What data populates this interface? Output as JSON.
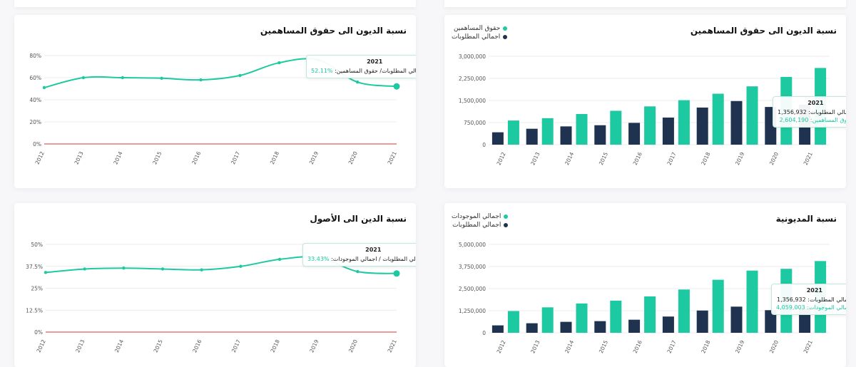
{
  "colors": {
    "teal": "#1dc9a0",
    "navy": "#1f3350",
    "red": "#e45b5b",
    "grid": "#ececec"
  },
  "debt_equity_line": {
    "title": "نسبة الديون الى حقوق المساهمين",
    "tooltip": {
      "year": "2021",
      "label": "نسبة اجمالي المطلوبات/ حقوق المساهمين:",
      "value": "%52.11"
    }
  },
  "debt_equity_bars": {
    "title": "نسبة الديون الى حقوق المساهمين",
    "legend": [
      "حقوق المساهمين",
      "اجمالي المطلوبات"
    ],
    "tooltip": {
      "year": "2021",
      "row1_label": "اجمالي المطلوبات:",
      "row1_value": "1,356,932",
      "row2_label": "حقوق المساهمين:",
      "row2_value": "2,604,190"
    }
  },
  "debt_assets_line": {
    "title": "نسبة الدين الى الأصول",
    "tooltip": {
      "year": "2021",
      "label": "نسبة اجمالي المطلوبات / اجمالي الموجودات:",
      "value": "%33.43"
    }
  },
  "indebtedness_bars": {
    "title": "نسبة المديونية",
    "legend": [
      "اجمالي الموجودات",
      "اجمالي المطلوبات"
    ],
    "tooltip": {
      "year": "2021",
      "row1_label": "اجمالي المطلوبات:",
      "row1_value": "1,356,932",
      "row2_label": "اجمالي الموجودات:",
      "row2_value": "4,059,003"
    }
  },
  "chart_data": [
    {
      "type": "line",
      "title": "نسبة الديون الى حقوق المساهمين",
      "categories": [
        "2012",
        "2013",
        "2014",
        "2015",
        "2016",
        "2017",
        "2018",
        "2019",
        "2020",
        "2021"
      ],
      "series": [
        {
          "values": [
            51,
            60,
            60,
            59.5,
            58,
            62,
            73.5,
            76,
            56,
            52.11
          ]
        }
      ],
      "baseline": 0,
      "yticks": [
        "0%",
        "20%",
        "40%",
        "60%",
        "80%"
      ],
      "ylim": [
        0,
        80
      ]
    },
    {
      "type": "bar",
      "title": "نسبة الديون الى حقوق المساهمين",
      "categories": [
        "2012",
        "2013",
        "2014",
        "2015",
        "2016",
        "2017",
        "2018",
        "2019",
        "2020",
        "2021"
      ],
      "series": [
        {
          "name": "اجمالي المطلوبات",
          "values": [
            420000,
            540000,
            620000,
            660000,
            740000,
            920000,
            1260000,
            1480000,
            1280000,
            1356932
          ]
        },
        {
          "name": "حقوق المساهمين",
          "values": [
            820000,
            900000,
            1040000,
            1150000,
            1300000,
            1510000,
            1730000,
            1980000,
            2300000,
            2604190
          ]
        }
      ],
      "yticks": [
        "0",
        "750,000",
        "1,500,000",
        "2,250,000",
        "3,000,000"
      ],
      "ylim": [
        0,
        3000000
      ]
    },
    {
      "type": "line",
      "title": "نسبة الدين الى الأصول",
      "categories": [
        "2012",
        "2013",
        "2014",
        "2015",
        "2016",
        "2017",
        "2018",
        "2019",
        "2020",
        "2021"
      ],
      "series": [
        {
          "values": [
            34,
            36,
            36.5,
            36,
            35.5,
            37.5,
            41.5,
            42.5,
            34.5,
            33.43
          ]
        }
      ],
      "baseline": 0,
      "yticks": [
        "0%",
        "12.5%",
        "25%",
        "37.5%",
        "50%"
      ],
      "ylim": [
        0,
        50
      ]
    },
    {
      "type": "bar",
      "title": "نسبة المديونية",
      "categories": [
        "2012",
        "2013",
        "2014",
        "2015",
        "2016",
        "2017",
        "2018",
        "2019",
        "2020",
        "2021"
      ],
      "series": [
        {
          "name": "اجمالي المطلوبات",
          "values": [
            420000,
            540000,
            620000,
            660000,
            740000,
            920000,
            1260000,
            1480000,
            1280000,
            1356932
          ]
        },
        {
          "name": "اجمالي الموجودات",
          "values": [
            1230000,
            1440000,
            1660000,
            1820000,
            2060000,
            2450000,
            3000000,
            3520000,
            3620000,
            4059003
          ]
        }
      ],
      "yticks": [
        "0",
        "1,250,000",
        "2,500,000",
        "3,750,000",
        "5,000,000"
      ],
      "ylim": [
        0,
        5000000
      ]
    }
  ]
}
